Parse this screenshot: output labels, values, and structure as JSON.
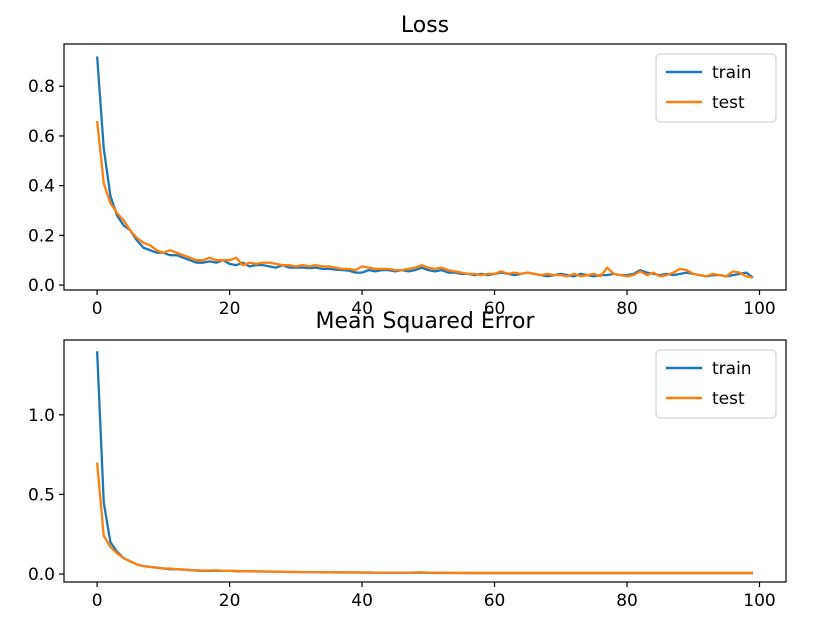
{
  "colors": {
    "train": "#1f77b4",
    "test": "#ff7f0e"
  },
  "chart_data": [
    {
      "type": "line",
      "title": "Loss",
      "xlabel": "",
      "ylabel": "",
      "xlim": [
        -5,
        104
      ],
      "ylim": [
        -0.02,
        0.97
      ],
      "xticks": [
        0,
        20,
        40,
        60,
        80,
        100
      ],
      "yticks": [
        0.0,
        0.2,
        0.4,
        0.6,
        0.8
      ],
      "ytick_labels": [
        "0.0",
        "0.2",
        "0.4",
        "0.6",
        "0.8"
      ],
      "grid": false,
      "legend_position": "top-right",
      "series": [
        {
          "name": "train",
          "color": "#1f77b4",
          "values": [
            0.92,
            0.55,
            0.36,
            0.28,
            0.24,
            0.22,
            0.18,
            0.15,
            0.14,
            0.13,
            0.13,
            0.12,
            0.12,
            0.11,
            0.1,
            0.09,
            0.09,
            0.095,
            0.09,
            0.1,
            0.085,
            0.08,
            0.09,
            0.075,
            0.08,
            0.08,
            0.075,
            0.07,
            0.08,
            0.07,
            0.07,
            0.07,
            0.068,
            0.07,
            0.065,
            0.065,
            0.062,
            0.06,
            0.058,
            0.05,
            0.05,
            0.06,
            0.055,
            0.06,
            0.06,
            0.055,
            0.06,
            0.055,
            0.06,
            0.07,
            0.06,
            0.055,
            0.06,
            0.05,
            0.05,
            0.045,
            0.045,
            0.04,
            0.045,
            0.04,
            0.045,
            0.05,
            0.045,
            0.04,
            0.045,
            0.05,
            0.045,
            0.04,
            0.035,
            0.04,
            0.045,
            0.04,
            0.035,
            0.045,
            0.04,
            0.035,
            0.04,
            0.04,
            0.045,
            0.04,
            0.04,
            0.045,
            0.06,
            0.05,
            0.045,
            0.04,
            0.045,
            0.04,
            0.045,
            0.05,
            0.045,
            0.04,
            0.035,
            0.04,
            0.04,
            0.035,
            0.04,
            0.045,
            0.05,
            0.03
          ]
        },
        {
          "name": "test",
          "color": "#ff7f0e",
          "values": [
            0.66,
            0.41,
            0.33,
            0.29,
            0.26,
            0.22,
            0.19,
            0.17,
            0.16,
            0.14,
            0.13,
            0.14,
            0.13,
            0.12,
            0.11,
            0.1,
            0.1,
            0.11,
            0.1,
            0.1,
            0.1,
            0.11,
            0.08,
            0.09,
            0.085,
            0.09,
            0.09,
            0.085,
            0.08,
            0.08,
            0.075,
            0.08,
            0.075,
            0.08,
            0.075,
            0.075,
            0.07,
            0.065,
            0.065,
            0.06,
            0.075,
            0.07,
            0.065,
            0.065,
            0.065,
            0.06,
            0.06,
            0.065,
            0.07,
            0.08,
            0.07,
            0.065,
            0.07,
            0.06,
            0.055,
            0.05,
            0.045,
            0.045,
            0.04,
            0.045,
            0.045,
            0.055,
            0.045,
            0.05,
            0.045,
            0.05,
            0.045,
            0.04,
            0.045,
            0.04,
            0.04,
            0.035,
            0.045,
            0.035,
            0.04,
            0.045,
            0.035,
            0.07,
            0.045,
            0.04,
            0.035,
            0.04,
            0.055,
            0.04,
            0.05,
            0.035,
            0.04,
            0.05,
            0.065,
            0.06,
            0.045,
            0.04,
            0.035,
            0.045,
            0.04,
            0.035,
            0.055,
            0.05,
            0.035,
            0.03
          ]
        }
      ]
    },
    {
      "type": "line",
      "title": "Mean Squared Error",
      "xlabel": "",
      "ylabel": "",
      "xlim": [
        -5,
        104
      ],
      "ylim": [
        -0.05,
        1.47
      ],
      "xticks": [
        0,
        20,
        40,
        60,
        80,
        100
      ],
      "yticks": [
        0.0,
        0.5,
        1.0
      ],
      "ytick_labels": [
        "0.0",
        "0.5",
        "1.0"
      ],
      "grid": false,
      "legend_position": "top-right",
      "series": [
        {
          "name": "train",
          "color": "#1f77b4",
          "values": [
            1.4,
            0.45,
            0.2,
            0.14,
            0.1,
            0.08,
            0.06,
            0.05,
            0.045,
            0.04,
            0.035,
            0.03,
            0.03,
            0.028,
            0.025,
            0.022,
            0.02,
            0.02,
            0.022,
            0.02,
            0.02,
            0.018,
            0.018,
            0.017,
            0.016,
            0.016,
            0.015,
            0.015,
            0.014,
            0.013,
            0.013,
            0.012,
            0.012,
            0.012,
            0.011,
            0.011,
            0.01,
            0.01,
            0.01,
            0.01,
            0.009,
            0.009,
            0.009,
            0.008,
            0.008,
            0.008,
            0.008,
            0.008,
            0.008,
            0.009,
            0.008,
            0.007,
            0.007,
            0.007,
            0.007,
            0.007,
            0.006,
            0.006,
            0.006,
            0.006,
            0.006,
            0.006,
            0.006,
            0.006,
            0.006,
            0.006,
            0.006,
            0.006,
            0.006,
            0.006,
            0.006,
            0.006,
            0.006,
            0.006,
            0.006,
            0.006,
            0.006,
            0.006,
            0.006,
            0.006,
            0.006,
            0.006,
            0.006,
            0.006,
            0.006,
            0.006,
            0.006,
            0.006,
            0.006,
            0.006,
            0.006,
            0.006,
            0.006,
            0.006,
            0.006,
            0.006,
            0.006,
            0.006,
            0.006,
            0.006
          ]
        },
        {
          "name": "test",
          "color": "#ff7f0e",
          "values": [
            0.7,
            0.24,
            0.17,
            0.13,
            0.1,
            0.08,
            0.06,
            0.05,
            0.045,
            0.04,
            0.035,
            0.035,
            0.03,
            0.028,
            0.025,
            0.024,
            0.022,
            0.022,
            0.024,
            0.02,
            0.02,
            0.02,
            0.018,
            0.018,
            0.017,
            0.016,
            0.016,
            0.015,
            0.014,
            0.014,
            0.013,
            0.013,
            0.012,
            0.012,
            0.012,
            0.011,
            0.011,
            0.01,
            0.01,
            0.01,
            0.01,
            0.01,
            0.009,
            0.009,
            0.009,
            0.009,
            0.009,
            0.009,
            0.01,
            0.011,
            0.009,
            0.008,
            0.008,
            0.008,
            0.007,
            0.007,
            0.007,
            0.007,
            0.007,
            0.007,
            0.007,
            0.007,
            0.007,
            0.007,
            0.007,
            0.007,
            0.007,
            0.007,
            0.007,
            0.007,
            0.007,
            0.007,
            0.007,
            0.007,
            0.007,
            0.007,
            0.007,
            0.007,
            0.007,
            0.007,
            0.007,
            0.007,
            0.007,
            0.007,
            0.007,
            0.007,
            0.007,
            0.007,
            0.007,
            0.007,
            0.007,
            0.007,
            0.007,
            0.007,
            0.007,
            0.007,
            0.007,
            0.007,
            0.007,
            0.007
          ]
        }
      ]
    }
  ]
}
